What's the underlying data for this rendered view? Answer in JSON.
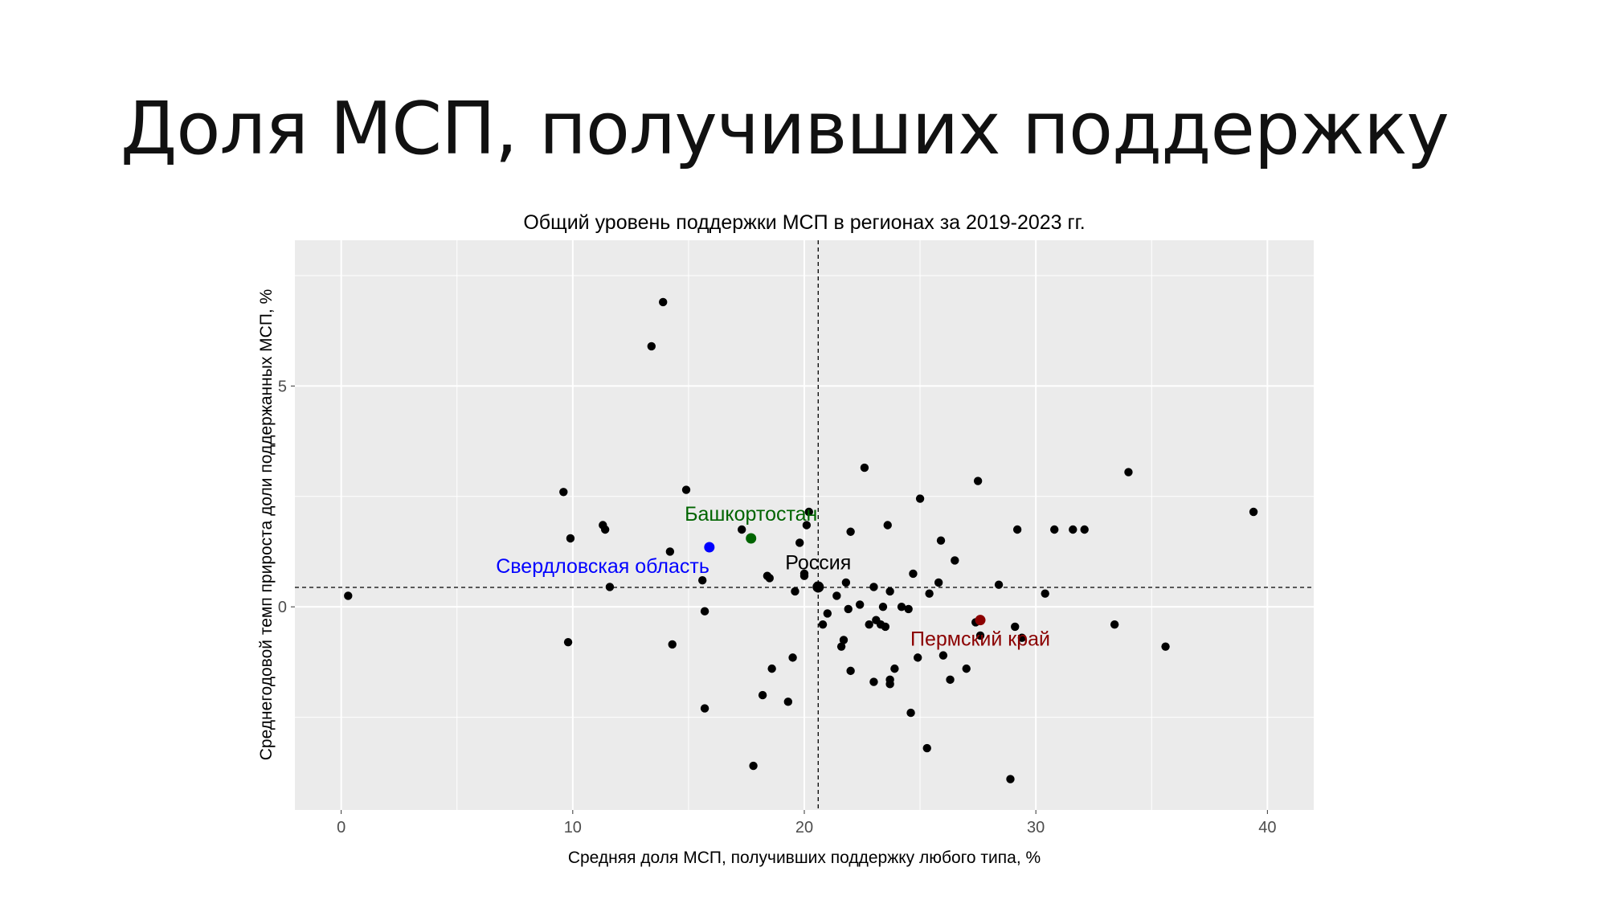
{
  "slide": {
    "title": "Доля МСП, получивших поддержку"
  },
  "chart_data": {
    "type": "scatter",
    "title": "Общий уровень поддержки МСП в регионах за 2019-2023 гг.",
    "xlabel": "Средняя доля МСП, получивших поддержку любого типа, %",
    "ylabel": "Среднегодовой темп прироста доли поддержанных МСП, %",
    "xlim": [
      -2,
      42
    ],
    "ylim": [
      -4.6,
      8.3
    ],
    "x_ticks": [
      0,
      10,
      20,
      30,
      40
    ],
    "y_ticks": [
      0,
      5
    ],
    "grid": true,
    "panel_color": "#ebebeb",
    "reference_lines": {
      "x": 20.6,
      "y": 0.44
    },
    "points": [
      {
        "x": 0.3,
        "y": 0.25
      },
      {
        "x": 9.6,
        "y": 2.6
      },
      {
        "x": 9.9,
        "y": 1.55
      },
      {
        "x": 9.8,
        "y": -0.8
      },
      {
        "x": 11.3,
        "y": 1.85
      },
      {
        "x": 11.4,
        "y": 1.75
      },
      {
        "x": 11.6,
        "y": 0.45
      },
      {
        "x": 13.4,
        "y": 5.9
      },
      {
        "x": 13.9,
        "y": 6.9
      },
      {
        "x": 14.2,
        "y": 1.25
      },
      {
        "x": 14.3,
        "y": -0.85
      },
      {
        "x": 14.9,
        "y": 2.65
      },
      {
        "x": 15.6,
        "y": 0.6
      },
      {
        "x": 15.7,
        "y": -0.1
      },
      {
        "x": 15.7,
        "y": -2.3
      },
      {
        "x": 17.3,
        "y": 1.75
      },
      {
        "x": 17.8,
        "y": -3.6
      },
      {
        "x": 18.2,
        "y": -2.0
      },
      {
        "x": 18.4,
        "y": 0.7
      },
      {
        "x": 18.5,
        "y": 0.65
      },
      {
        "x": 18.6,
        "y": -1.4
      },
      {
        "x": 19.3,
        "y": -2.15
      },
      {
        "x": 19.5,
        "y": -1.15
      },
      {
        "x": 19.6,
        "y": 0.35
      },
      {
        "x": 19.8,
        "y": 1.45
      },
      {
        "x": 20.0,
        "y": 0.75
      },
      {
        "x": 20.0,
        "y": 0.7
      },
      {
        "x": 20.1,
        "y": 1.85
      },
      {
        "x": 20.2,
        "y": 2.15
      },
      {
        "x": 20.8,
        "y": -0.4
      },
      {
        "x": 21.0,
        "y": -0.15
      },
      {
        "x": 21.4,
        "y": 0.25
      },
      {
        "x": 21.6,
        "y": -0.9
      },
      {
        "x": 21.7,
        "y": -0.75
      },
      {
        "x": 21.8,
        "y": 0.55
      },
      {
        "x": 21.9,
        "y": -0.05
      },
      {
        "x": 22.0,
        "y": 1.7
      },
      {
        "x": 22.0,
        "y": -1.45
      },
      {
        "x": 22.4,
        "y": 0.05
      },
      {
        "x": 22.6,
        "y": 3.15
      },
      {
        "x": 22.8,
        "y": -0.4
      },
      {
        "x": 23.0,
        "y": -1.7
      },
      {
        "x": 23.0,
        "y": 0.45
      },
      {
        "x": 23.1,
        "y": -0.3
      },
      {
        "x": 23.3,
        "y": -0.4
      },
      {
        "x": 23.4,
        "y": 0.0
      },
      {
        "x": 23.5,
        "y": -0.45
      },
      {
        "x": 23.6,
        "y": 1.85
      },
      {
        "x": 23.7,
        "y": 0.35
      },
      {
        "x": 23.7,
        "y": -1.65
      },
      {
        "x": 23.7,
        "y": -1.75
      },
      {
        "x": 23.9,
        "y": -1.4
      },
      {
        "x": 24.2,
        "y": 0.0
      },
      {
        "x": 24.5,
        "y": -0.05
      },
      {
        "x": 24.6,
        "y": -2.4
      },
      {
        "x": 24.7,
        "y": 0.75
      },
      {
        "x": 24.9,
        "y": -1.15
      },
      {
        "x": 25.0,
        "y": 2.45
      },
      {
        "x": 25.3,
        "y": -3.2
      },
      {
        "x": 25.4,
        "y": 0.3
      },
      {
        "x": 25.8,
        "y": 0.55
      },
      {
        "x": 25.9,
        "y": 1.5
      },
      {
        "x": 26.0,
        "y": -1.1
      },
      {
        "x": 26.3,
        "y": -1.65
      },
      {
        "x": 26.5,
        "y": 1.05
      },
      {
        "x": 27.0,
        "y": -1.4
      },
      {
        "x": 27.4,
        "y": -0.35
      },
      {
        "x": 27.5,
        "y": 2.85
      },
      {
        "x": 27.6,
        "y": -0.65
      },
      {
        "x": 28.4,
        "y": 0.5
      },
      {
        "x": 28.9,
        "y": -3.9
      },
      {
        "x": 29.1,
        "y": -0.45
      },
      {
        "x": 29.2,
        "y": 1.75
      },
      {
        "x": 29.4,
        "y": -0.7
      },
      {
        "x": 30.4,
        "y": 0.3
      },
      {
        "x": 30.8,
        "y": 1.75
      },
      {
        "x": 31.6,
        "y": 1.75
      },
      {
        "x": 32.1,
        "y": 1.75
      },
      {
        "x": 33.4,
        "y": -0.4
      },
      {
        "x": 34.0,
        "y": 3.05
      },
      {
        "x": 35.6,
        "y": -0.9
      },
      {
        "x": 39.4,
        "y": 2.15
      }
    ],
    "highlighted": [
      {
        "label": "Россия",
        "x": 20.6,
        "y": 0.45,
        "color": "#000000"
      },
      {
        "label": "Башкортостан",
        "x": 17.7,
        "y": 1.55,
        "color": "#006400"
      },
      {
        "label": "Свердловская область",
        "x": 15.9,
        "y": 1.35,
        "color": "#0000ff"
      },
      {
        "label": "Пермский край",
        "x": 27.6,
        "y": -0.3,
        "color": "#8b0000"
      }
    ]
  }
}
